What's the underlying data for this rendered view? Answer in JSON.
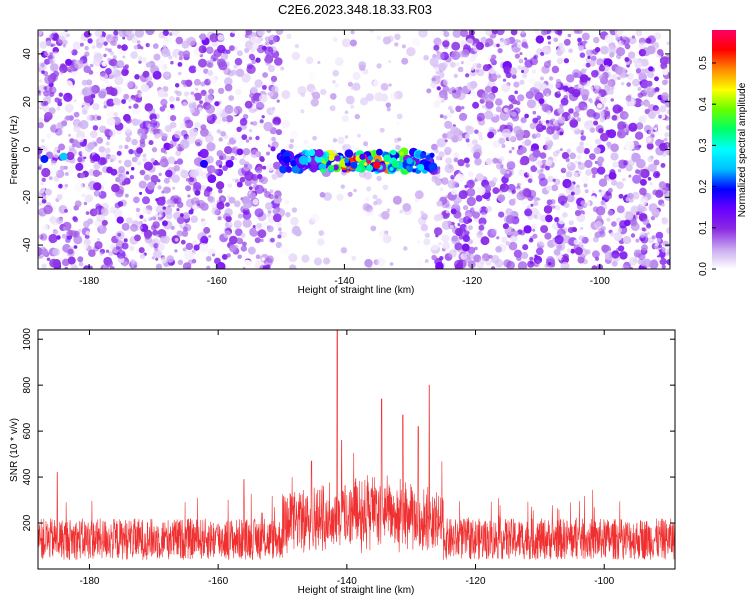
{
  "figure": {
    "title": "C2E6.2023.348.18.33.R03"
  },
  "chart_data": [
    {
      "type": "heatmap",
      "title": "C2E6.2023.348.18.33.R03",
      "xlabel": "Height of straight line (km)",
      "ylabel": "Frequency (Hz)",
      "xlim": [
        -188,
        -89
      ],
      "ylim": [
        -50,
        50
      ],
      "x_ticks": [
        -180,
        -160,
        -140,
        -120,
        -100
      ],
      "y_ticks": [
        -40,
        -20,
        0,
        20,
        40
      ],
      "colorbar": {
        "label": "Normalized spectral amplitude",
        "range": [
          0.0,
          0.58
        ],
        "ticks": [
          0.0,
          0.1,
          0.2,
          0.3,
          0.4,
          0.5
        ],
        "colormap": [
          "#ffffff",
          "#c8a8f0",
          "#8a2be2",
          "#6a00ff",
          "#0000ff",
          "#00bfff",
          "#00ffff",
          "#00ff66",
          "#66ff00",
          "#ffff00",
          "#ff8c00",
          "#ff0000",
          "#ff0066"
        ]
      },
      "signal_band": {
        "frequency_hz": -5,
        "x_range": [
          -150,
          -126
        ],
        "peak_amplitude": 0.55
      },
      "background_noise_amplitude": 0.1
    },
    {
      "type": "line",
      "xlabel": "Height of straight line (km)",
      "ylabel": "SNR (10 * v/v)",
      "xlim": [
        -188,
        -89
      ],
      "ylim": [
        0,
        1040
      ],
      "x_ticks": [
        -180,
        -160,
        -140,
        -120,
        -100
      ],
      "y_ticks": [
        200,
        400,
        600,
        800,
        1000
      ],
      "color": "#f03030",
      "baseline_mean": 130,
      "peaks": [
        {
          "x": -141.5,
          "y": 1040
        },
        {
          "x": -140.8,
          "y": 560
        },
        {
          "x": -134.6,
          "y": 740
        },
        {
          "x": -131.3,
          "y": 670
        },
        {
          "x": -128.9,
          "y": 620
        },
        {
          "x": -127.2,
          "y": 800
        },
        {
          "x": -145.5,
          "y": 470
        },
        {
          "x": -185,
          "y": 420
        },
        {
          "x": -156,
          "y": 390
        }
      ]
    }
  ]
}
